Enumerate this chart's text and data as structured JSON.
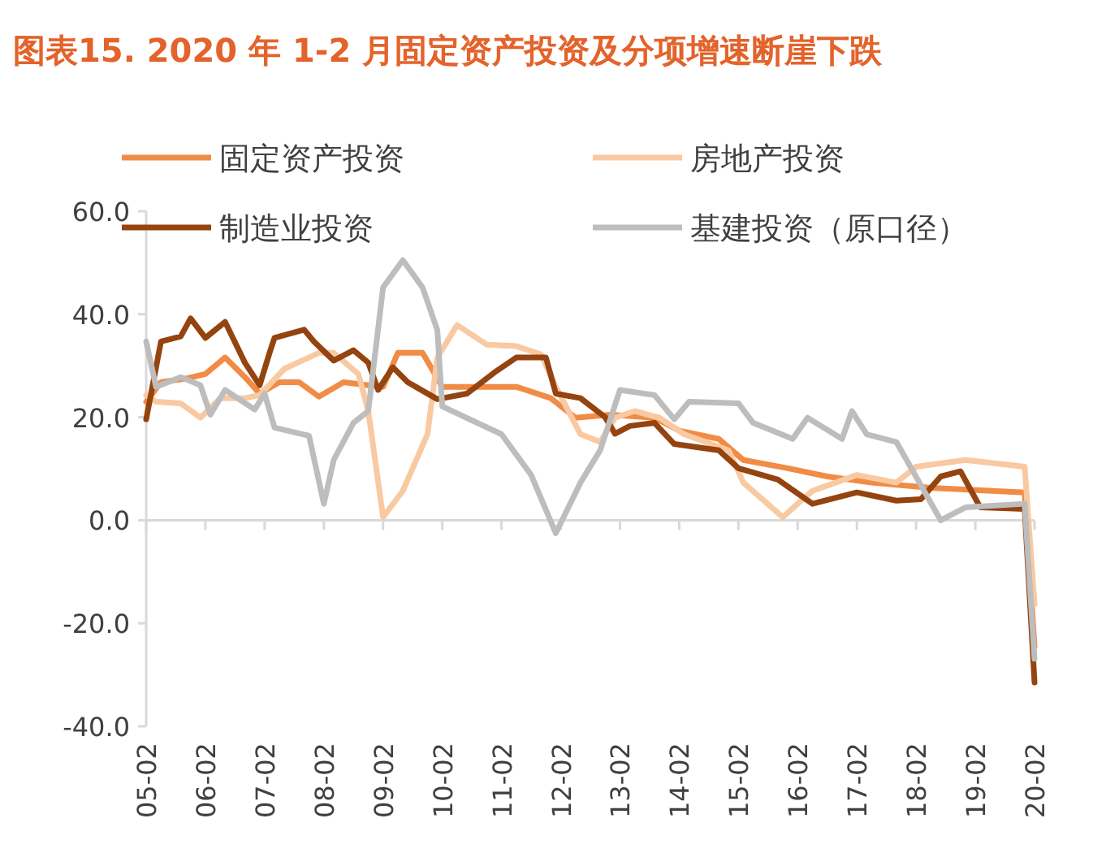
{
  "chart_data": {
    "type": "line",
    "title": "图表15. 2020 年 1-2 月固定资产投资及分项增速断崖下跌",
    "legend": "top",
    "line_style": "solid",
    "xlim": [
      "2005-02",
      "2020-02"
    ],
    "xticks": [
      {
        "value": "2005-02",
        "label": "05-02"
      },
      {
        "value": "2006-02",
        "label": "06-02"
      },
      {
        "value": "2007-02",
        "label": "07-02"
      },
      {
        "value": "2008-02",
        "label": "08-02"
      },
      {
        "value": "2009-02",
        "label": "09-02"
      },
      {
        "value": "2010-02",
        "label": "10-02"
      },
      {
        "value": "2011-02",
        "label": "11-02"
      },
      {
        "value": "2012-02",
        "label": "12-02"
      },
      {
        "value": "2013-02",
        "label": "13-02"
      },
      {
        "value": "2014-02",
        "label": "14-02"
      },
      {
        "value": "2015-02",
        "label": "15-02"
      },
      {
        "value": "2016-02",
        "label": "16-02"
      },
      {
        "value": "2017-02",
        "label": "17-02"
      },
      {
        "value": "2018-02",
        "label": "18-02"
      },
      {
        "value": "2019-02",
        "label": "19-02"
      },
      {
        "value": "2020-02",
        "label": "20-02"
      }
    ],
    "ylim": [
      -40,
      60
    ],
    "yticks": [
      {
        "value": -40,
        "label": "-40.0"
      },
      {
        "value": -20,
        "label": "-20.0"
      },
      {
        "value": 0,
        "label": "0.0"
      },
      {
        "value": 20,
        "label": "20.0"
      },
      {
        "value": 40,
        "label": "40.0"
      },
      {
        "value": 60,
        "label": "60.0"
      }
    ],
    "series": [
      {
        "name": "固定资产投资",
        "color": "#f08c46",
        "x": [
          "2005-02",
          "2005-05",
          "2005-10",
          "2006-02",
          "2006-06",
          "2006-10",
          "2007-01",
          "2007-05",
          "2007-09",
          "2008-01",
          "2008-06",
          "2008-11",
          "2009-02",
          "2009-05",
          "2009-10",
          "2010-02",
          "2011-05",
          "2011-12",
          "2012-05",
          "2012-12",
          "2013-09",
          "2014-02",
          "2014-10",
          "2015-03",
          "2015-12",
          "2016-08",
          "2017-05",
          "2018-05",
          "2019-12",
          "2020-02"
        ],
        "values": [
          23.0,
          26.8,
          27.5,
          28.4,
          31.6,
          27.8,
          24.6,
          26.8,
          26.8,
          24.0,
          26.8,
          26.2,
          25.9,
          32.5,
          32.5,
          25.9,
          25.9,
          23.7,
          19.9,
          20.5,
          19.9,
          17.4,
          15.8,
          11.7,
          10.1,
          8.5,
          7.3,
          6.3,
          5.4,
          -24.5
        ]
      },
      {
        "name": "房地产投资",
        "color": "#f9c9a1",
        "x": [
          "2005-02",
          "2005-04",
          "2005-09",
          "2006-01",
          "2006-05",
          "2006-10",
          "2007-01",
          "2007-06",
          "2008-01",
          "2008-04",
          "2008-09",
          "2008-11",
          "2009-02",
          "2009-06",
          "2009-11",
          "2010-01",
          "2010-05",
          "2010-11",
          "2011-05",
          "2011-10",
          "2012-01",
          "2012-06",
          "2012-10",
          "2013-01",
          "2013-05",
          "2013-10",
          "2014-03",
          "2014-12",
          "2015-03",
          "2015-11",
          "2016-02",
          "2016-05",
          "2017-02",
          "2017-10",
          "2018-02",
          "2018-12",
          "2019-12",
          "2020-02"
        ],
        "values": [
          24.3,
          23.0,
          22.7,
          19.9,
          23.7,
          23.7,
          24.3,
          29.4,
          32.5,
          32.5,
          28.4,
          21.2,
          0.6,
          5.7,
          16.7,
          31.6,
          37.9,
          34.1,
          33.8,
          32.2,
          25.9,
          16.7,
          15.2,
          19.9,
          21.2,
          19.9,
          16.7,
          13.6,
          7.3,
          0.6,
          3.2,
          5.7,
          8.8,
          7.3,
          10.4,
          11.7,
          10.4,
          -16.3
        ]
      },
      {
        "name": "制造业投资",
        "color": "#95430f",
        "x": [
          "2005-02",
          "2005-05",
          "2005-09",
          "2005-11",
          "2006-02",
          "2006-06",
          "2006-10",
          "2007-01",
          "2007-03",
          "2007-04",
          "2007-10",
          "2007-12",
          "2008-04",
          "2008-08",
          "2008-11",
          "2009-01",
          "2009-04",
          "2009-07",
          "2010-01",
          "2010-07",
          "2011-01",
          "2011-05",
          "2011-11",
          "2012-01",
          "2012-06",
          "2012-11",
          "2013-01",
          "2013-04",
          "2013-09",
          "2014-01",
          "2014-10",
          "2015-02",
          "2015-10",
          "2016-05",
          "2017-02",
          "2017-10",
          "2018-03",
          "2018-07",
          "2018-11",
          "2019-03",
          "2019-12",
          "2020-02"
        ],
        "values": [
          19.6,
          34.7,
          35.7,
          39.2,
          35.4,
          38.5,
          30.6,
          26.2,
          32.5,
          35.4,
          37.0,
          34.7,
          31.0,
          33.0,
          30.6,
          25.3,
          29.7,
          26.8,
          23.5,
          24.6,
          29.0,
          31.6,
          31.6,
          24.6,
          23.7,
          20.0,
          16.8,
          18.3,
          18.9,
          14.8,
          13.6,
          10.1,
          7.9,
          3.2,
          5.4,
          3.8,
          4.1,
          8.5,
          9.5,
          2.5,
          2.2,
          -31.5
        ]
      },
      {
        "name": "基建投资（原口径）",
        "color": "#bdbdbd",
        "x": [
          "2005-02",
          "2005-04",
          "2005-09",
          "2006-01",
          "2006-03",
          "2006-06",
          "2006-12",
          "2007-02",
          "2007-04",
          "2007-11",
          "2008-02",
          "2008-04",
          "2008-08",
          "2008-11",
          "2009-02",
          "2009-06",
          "2009-10",
          "2010-01",
          "2010-02",
          "2011-02",
          "2011-08",
          "2012-01",
          "2012-06",
          "2012-10",
          "2013-02",
          "2013-09",
          "2014-01",
          "2014-04",
          "2015-02",
          "2015-05",
          "2016-01",
          "2016-04",
          "2016-11",
          "2017-01",
          "2017-04",
          "2017-10",
          "2018-07",
          "2018-12",
          "2019-12",
          "2020-02"
        ],
        "values": [
          34.7,
          25.9,
          27.8,
          26.2,
          20.5,
          25.3,
          21.5,
          24.6,
          18.0,
          16.4,
          3.2,
          11.7,
          18.9,
          21.2,
          45.2,
          50.5,
          45.2,
          36.9,
          22.1,
          16.7,
          8.8,
          -2.5,
          7.3,
          13.6,
          25.3,
          24.3,
          19.6,
          23.0,
          22.7,
          18.9,
          15.8,
          19.9,
          15.8,
          21.2,
          16.7,
          15.2,
          0.0,
          2.5,
          3.2,
          -26.9
        ]
      }
    ]
  }
}
